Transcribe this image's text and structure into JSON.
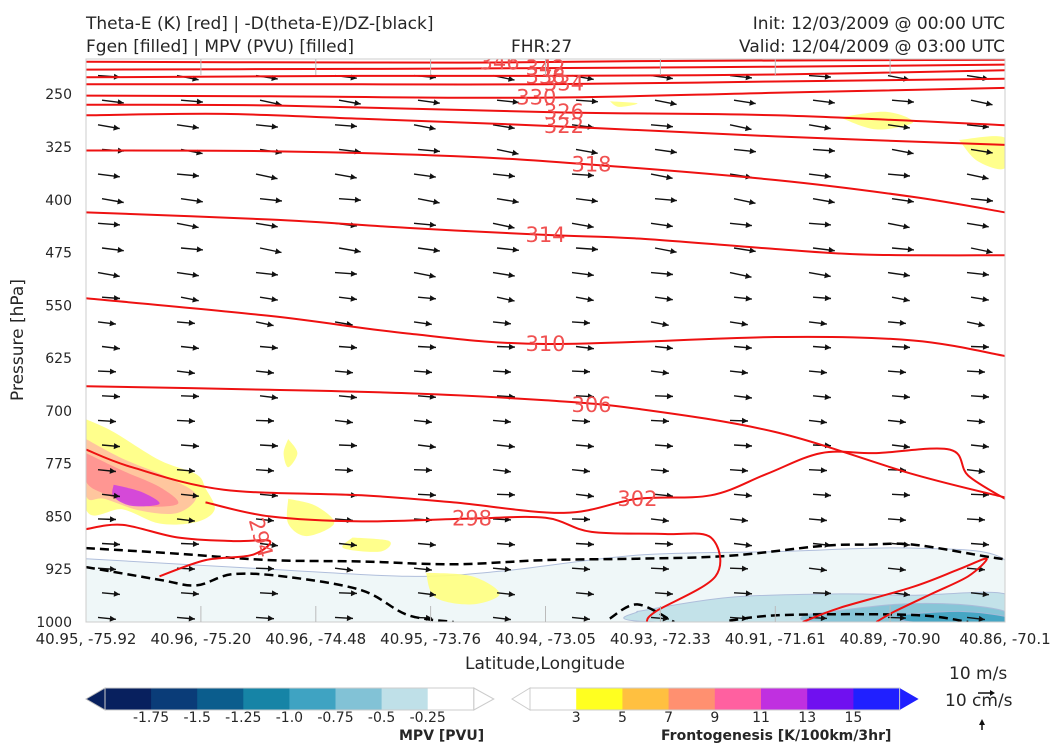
{
  "header": {
    "title_line1": "Theta-E (K) [red] | -D(theta-E)/DZ-[black]",
    "title_line2": "Fgen [filled] | MPV (PVU) [filled]",
    "fhr": "FHR:27",
    "init": "Init: 12/03/2009 @ 00:00 UTC",
    "valid": "Valid: 12/04/2009 @ 03:00 UTC"
  },
  "chart_data": {
    "type": "cross-section contour",
    "xlabel": "Latitude,Longitude",
    "ylabel": "Pressure [hPa]",
    "ylim": [
      1000,
      200
    ],
    "x_tick_labels": [
      "40.95, -75.92",
      "40.96, -75.20",
      "40.96, -74.48",
      "40.95, -73.76",
      "40.94, -73.05",
      "40.93, -72.33",
      "40.91, -71.61",
      "40.89, -70.90",
      "40.86, -70.1"
    ],
    "y_ticks": [
      250,
      325,
      400,
      475,
      550,
      625,
      700,
      775,
      850,
      925,
      1000
    ],
    "theta_e_labels": [
      {
        "value": "346",
        "x": 0.45,
        "p": 205
      },
      {
        "value": "342",
        "x": 0.5,
        "p": 213
      },
      {
        "value": "338",
        "x": 0.5,
        "p": 225
      },
      {
        "value": "334",
        "x": 0.52,
        "p": 235
      },
      {
        "value": "330",
        "x": 0.49,
        "p": 255
      },
      {
        "value": "326",
        "x": 0.52,
        "p": 275
      },
      {
        "value": "322",
        "x": 0.52,
        "p": 295
      },
      {
        "value": "318",
        "x": 0.55,
        "p": 350
      },
      {
        "value": "314",
        "x": 0.5,
        "p": 450
      },
      {
        "value": "310",
        "x": 0.5,
        "p": 605
      },
      {
        "value": "306",
        "x": 0.55,
        "p": 692
      },
      {
        "value": "302",
        "x": 0.6,
        "p": 825
      },
      {
        "value": "298",
        "x": 0.42,
        "p": 853
      },
      {
        "value": "294",
        "x": 0.19,
        "p": 880
      }
    ],
    "theta_e_contours": [
      {
        "value": 346,
        "points": [
          [
            0,
            204
          ],
          [
            0.3,
            205
          ],
          [
            0.45,
            205
          ],
          [
            0.6,
            203
          ],
          [
            1,
            201
          ]
        ]
      },
      {
        "value": 342,
        "points": [
          [
            0,
            215
          ],
          [
            0.3,
            214
          ],
          [
            0.5,
            213
          ],
          [
            0.75,
            211
          ],
          [
            1,
            208
          ]
        ]
      },
      {
        "value": 338,
        "points": [
          [
            0,
            226
          ],
          [
            0.3,
            224
          ],
          [
            0.5,
            224
          ],
          [
            0.75,
            222
          ],
          [
            1,
            216
          ]
        ]
      },
      {
        "value": 334,
        "points": [
          [
            0,
            236
          ],
          [
            0.3,
            236
          ],
          [
            0.5,
            236
          ],
          [
            0.75,
            232
          ],
          [
            1,
            228
          ]
        ]
      },
      {
        "value": 330,
        "points": [
          [
            0,
            252
          ],
          [
            0.2,
            253
          ],
          [
            0.49,
            255
          ],
          [
            0.75,
            248
          ],
          [
            1,
            241
          ]
        ]
      },
      {
        "value": 326,
        "points": [
          [
            0,
            265
          ],
          [
            0.2,
            266
          ],
          [
            0.52,
            276
          ],
          [
            0.75,
            280
          ],
          [
            1,
            294
          ]
        ]
      },
      {
        "value": 322,
        "points": [
          [
            0,
            280
          ],
          [
            0.15,
            278
          ],
          [
            0.3,
            285
          ],
          [
            0.52,
            296
          ],
          [
            0.75,
            310
          ],
          [
            1,
            322
          ]
        ]
      },
      {
        "value": 318,
        "points": [
          [
            0,
            330
          ],
          [
            0.2,
            331
          ],
          [
            0.4,
            338
          ],
          [
            0.55,
            350
          ],
          [
            0.75,
            372
          ],
          [
            0.9,
            396
          ],
          [
            1,
            418
          ]
        ]
      },
      {
        "value": 314,
        "points": [
          [
            0,
            418
          ],
          [
            0.2,
            428
          ],
          [
            0.35,
            440
          ],
          [
            0.5,
            450
          ],
          [
            0.6,
            455
          ],
          [
            0.75,
            470
          ],
          [
            0.85,
            478
          ],
          [
            1,
            479
          ]
        ]
      },
      {
        "value": 310,
        "points": [
          [
            0,
            540
          ],
          [
            0.2,
            565
          ],
          [
            0.35,
            590
          ],
          [
            0.5,
            605
          ],
          [
            0.75,
            595
          ],
          [
            0.9,
            600
          ],
          [
            1,
            622
          ]
        ]
      },
      {
        "value": 306,
        "points": [
          [
            0,
            665
          ],
          [
            0.2,
            670
          ],
          [
            0.35,
            675
          ],
          [
            0.5,
            685
          ],
          [
            0.6,
            697
          ],
          [
            0.75,
            730
          ],
          [
            0.9,
            790
          ],
          [
            1,
            823
          ]
        ]
      },
      {
        "value": 302,
        "points": [
          [
            0,
            755
          ],
          [
            0.05,
            780
          ],
          [
            0.15,
            812
          ],
          [
            0.3,
            820
          ],
          [
            0.4,
            830
          ],
          [
            0.52,
            845
          ],
          [
            0.6,
            825
          ],
          [
            0.68,
            820
          ],
          [
            0.74,
            790
          ],
          [
            0.8,
            760
          ],
          [
            0.86,
            760
          ],
          [
            0.94,
            755
          ],
          [
            0.96,
            792
          ],
          [
            1,
            825
          ]
        ]
      },
      {
        "value": 298,
        "points": [
          [
            0.13,
            830
          ],
          [
            0.2,
            850
          ],
          [
            0.3,
            857
          ],
          [
            0.42,
            853
          ],
          [
            0.5,
            852
          ],
          [
            0.55,
            872
          ],
          [
            0.63,
            875
          ],
          [
            0.68,
            880
          ],
          [
            0.685,
            935
          ],
          [
            0.62,
            985
          ],
          [
            0.61,
            1000
          ]
        ]
      },
      {
        "value": 294,
        "points": [
          [
            0,
            868
          ],
          [
            0.04,
            862
          ],
          [
            0.1,
            880
          ],
          [
            0.16,
            885
          ],
          [
            0.2,
            885
          ],
          [
            0.18,
            905
          ],
          [
            0.13,
            912
          ],
          [
            0.08,
            935
          ]
        ]
      },
      {
        "value": 290,
        "points": [
          [
            0.78,
            1000
          ],
          [
            0.82,
            980
          ],
          [
            0.9,
            950
          ],
          [
            0.95,
            925
          ],
          [
            0.98,
            910
          ],
          [
            0.96,
            935
          ],
          [
            0.92,
            960
          ],
          [
            0.88,
            985
          ],
          [
            0.86,
            1000
          ]
        ]
      }
    ],
    "black_dashed_contours": [
      {
        "points": [
          [
            0,
            895
          ],
          [
            0.1,
            903
          ],
          [
            0.2,
            912
          ],
          [
            0.3,
            914
          ],
          [
            0.4,
            918
          ],
          [
            0.5,
            912
          ],
          [
            0.6,
            910
          ],
          [
            0.7,
            906
          ],
          [
            0.8,
            892
          ],
          [
            0.85,
            890
          ],
          [
            0.9,
            890
          ],
          [
            0.98,
            907
          ],
          [
            1,
            911
          ]
        ]
      },
      {
        "points": [
          [
            0,
            922
          ],
          [
            0.08,
            940
          ],
          [
            0.12,
            948
          ],
          [
            0.16,
            932
          ],
          [
            0.22,
            936
          ],
          [
            0.3,
            955
          ],
          [
            0.35,
            990
          ],
          [
            0.4,
            1000
          ]
        ]
      },
      {
        "points": [
          [
            0.57,
            995
          ],
          [
            0.6,
            975
          ],
          [
            0.64,
            1000
          ]
        ]
      },
      {
        "points": [
          [
            0.7,
            998
          ],
          [
            0.76,
            990
          ],
          [
            0.9,
            990
          ],
          [
            0.96,
            1000
          ]
        ]
      }
    ],
    "fgen_fill": {
      "levels": [
        3,
        5,
        7,
        9,
        11,
        13,
        15
      ],
      "colors": [
        "#ffff80",
        "#ffc0a0",
        "#ff9090",
        "#ff60a0",
        "#d040e0",
        "#8020f0",
        "#2020ff"
      ]
    },
    "fgen_patches": [
      {
        "level": 0,
        "points": [
          [
            0,
            712
          ],
          [
            0.03,
            730
          ],
          [
            0.08,
            770
          ],
          [
            0.12,
            790
          ],
          [
            0.13,
            810
          ],
          [
            0.14,
            840
          ],
          [
            0.12,
            858
          ],
          [
            0.08,
            860
          ],
          [
            0.04,
            840
          ],
          [
            0,
            840
          ]
        ]
      },
      {
        "level": 1,
        "points": [
          [
            0,
            740
          ],
          [
            0.04,
            768
          ],
          [
            0.09,
            795
          ],
          [
            0.12,
            820
          ],
          [
            0.1,
            845
          ],
          [
            0.06,
            842
          ],
          [
            0.02,
            825
          ],
          [
            0,
            820
          ]
        ]
      },
      {
        "level": 2,
        "points": [
          [
            0,
            760
          ],
          [
            0.04,
            785
          ],
          [
            0.08,
            808
          ],
          [
            0.1,
            832
          ],
          [
            0.06,
            835
          ],
          [
            0.02,
            818
          ],
          [
            0,
            800
          ]
        ]
      },
      {
        "level": 4,
        "points": [
          [
            0.03,
            805
          ],
          [
            0.06,
            815
          ],
          [
            0.08,
            832
          ],
          [
            0.05,
            835
          ],
          [
            0.03,
            822
          ]
        ]
      },
      {
        "level": 0,
        "points": [
          [
            0.22,
            825
          ],
          [
            0.25,
            835
          ],
          [
            0.27,
            860
          ],
          [
            0.24,
            878
          ],
          [
            0.22,
            860
          ]
        ]
      },
      {
        "level": 0,
        "points": [
          [
            0.29,
            880
          ],
          [
            0.33,
            885
          ],
          [
            0.32,
            900
          ],
          [
            0.28,
            895
          ]
        ]
      },
      {
        "level": 0,
        "points": [
          [
            0.37,
            930
          ],
          [
            0.42,
            935
          ],
          [
            0.45,
            960
          ],
          [
            0.42,
            975
          ],
          [
            0.38,
            965
          ]
        ]
      },
      {
        "level": 0,
        "points": [
          [
            0.22,
            740
          ],
          [
            0.23,
            760
          ],
          [
            0.22,
            780
          ],
          [
            0.215,
            760
          ]
        ]
      },
      {
        "level": 0,
        "points": [
          [
            0.57,
            260
          ],
          [
            0.6,
            263
          ],
          [
            0.58,
            268
          ]
        ]
      },
      {
        "level": 0,
        "points": [
          [
            0.82,
            283
          ],
          [
            0.87,
            275
          ],
          [
            0.9,
            290
          ],
          [
            0.86,
            300
          ]
        ]
      },
      {
        "level": 0,
        "points": [
          [
            0.95,
            315
          ],
          [
            1,
            312
          ],
          [
            1,
            355
          ],
          [
            0.97,
            345
          ]
        ]
      }
    ],
    "mpv_fill": {
      "levels": [
        -1.75,
        -1.5,
        -1.25,
        -1.0,
        -0.75,
        -0.5,
        -0.25
      ],
      "colors": [
        "#08205e",
        "#0a3c78",
        "#0b5d8d",
        "#1684a6",
        "#3fa3c2",
        "#82c2d6",
        "#bfe0e8",
        "#ffffff"
      ]
    },
    "mpv_patches": [
      {
        "level": 7,
        "points": [
          [
            0,
            910
          ],
          [
            0.2,
            925
          ],
          [
            0.35,
            935
          ],
          [
            0.45,
            928
          ],
          [
            0.6,
            905
          ],
          [
            0.75,
            900
          ],
          [
            0.9,
            895
          ],
          [
            1,
            912
          ],
          [
            1,
            1000
          ],
          [
            0,
            1000
          ]
        ]
      },
      {
        "level": 6,
        "points": [
          [
            0.6,
            985
          ],
          [
            0.7,
            965
          ],
          [
            0.82,
            960
          ],
          [
            0.9,
            962
          ],
          [
            1,
            960
          ],
          [
            1,
            1000
          ],
          [
            0.62,
            1000
          ]
        ]
      },
      {
        "level": 5,
        "points": [
          [
            0.78,
            990
          ],
          [
            0.88,
            975
          ],
          [
            0.95,
            975
          ],
          [
            1,
            985
          ],
          [
            1,
            1000
          ],
          [
            0.8,
            1000
          ]
        ]
      },
      {
        "level": 4,
        "points": [
          [
            0.88,
            990
          ],
          [
            0.95,
            985
          ],
          [
            1,
            992
          ],
          [
            1,
            1000
          ],
          [
            0.9,
            1000
          ]
        ]
      }
    ],
    "fgen_colorbar": {
      "label": "Frontogenesis [K/100km/3hr]",
      "ticks": [
        "3",
        "5",
        "7",
        "9",
        "11",
        "13",
        "15"
      ]
    },
    "mpv_colorbar": {
      "label": "MPV [PVU]",
      "ticks": [
        "-1.75",
        "-1.5",
        "-1.25",
        "-1.0",
        "-0.75",
        "-0.5",
        "-0.25"
      ]
    },
    "reference_vectors": [
      "10 m/s",
      "10 cm/s"
    ]
  }
}
